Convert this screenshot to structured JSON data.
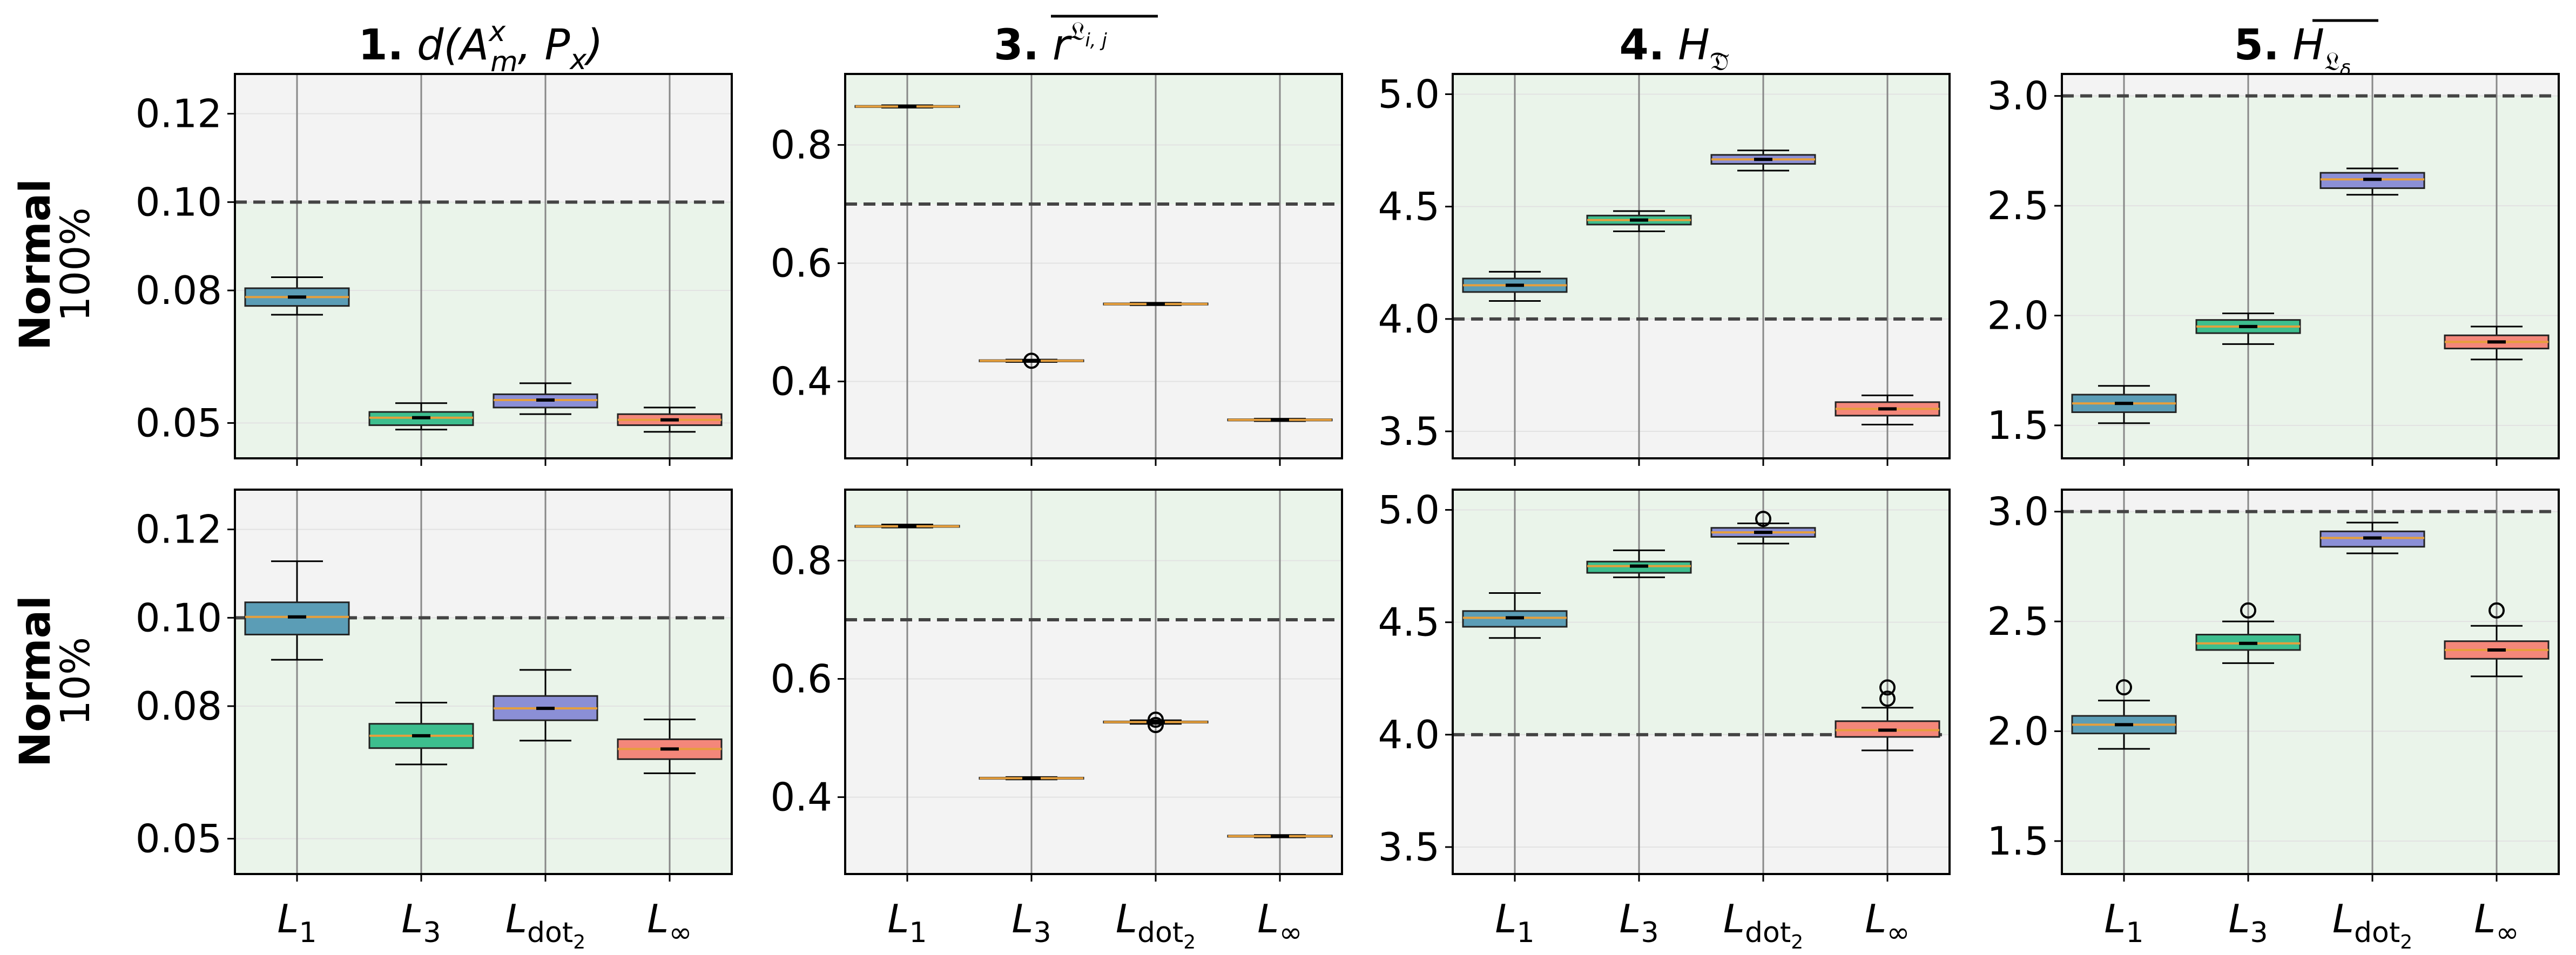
{
  "row_labels": [
    {
      "group": "Normal",
      "level": "100%"
    },
    {
      "group": "Normal",
      "level": "10%"
    }
  ],
  "titles": [
    {
      "num": "1.",
      "rest": "d(A",
      "sup": "x",
      "sub": "m",
      "tail": ", P",
      "sub2": "x",
      "end": ")"
    },
    {
      "num": "3.",
      "rest": "r",
      "sup": "𝔏",
      "supsub": "i, j",
      "overline": true
    },
    {
      "num": "4.",
      "rest": "H",
      "sub": "𝔇̃"
    },
    {
      "num": "5.",
      "rest": "H",
      "sub": "𝔏",
      "subsub": "δ",
      "overline": true
    }
  ],
  "x_labels": [
    {
      "base": "L",
      "sub": "1"
    },
    {
      "base": "L",
      "sub": "3"
    },
    {
      "base": "L",
      "sub": "dot",
      "subsub": "2"
    },
    {
      "base": "L",
      "sub": "∞"
    }
  ],
  "colors": {
    "boxes": [
      "#5B9DB6",
      "#3DBE8E",
      "#8B8FD6",
      "#F4877A"
    ],
    "median": "#E69F3C",
    "mean": "#000000",
    "good_region": "#EAF4EA",
    "bad_region": "#F3F3F3",
    "threshold": "#444444",
    "grid": "#E2E2E2",
    "vline": "#888888"
  },
  "chart_data": [
    {
      "type": "box",
      "row": 0,
      "col": 0,
      "ylim": [
        0.042,
        0.129
      ],
      "yticks": [
        0.05,
        0.08,
        0.1,
        0.12
      ],
      "ytick_labels": [
        "0.05",
        "0.08",
        "0.10",
        "0.12"
      ],
      "threshold": 0.1,
      "good": "below",
      "boxes": [
        {
          "whislo": 0.0745,
          "q1": 0.0765,
          "med": 0.0785,
          "q3": 0.0805,
          "whishi": 0.083,
          "mean": 0.0785,
          "fliers": []
        },
        {
          "whislo": 0.0485,
          "q1": 0.0495,
          "med": 0.0512,
          "q3": 0.0525,
          "whishi": 0.0545,
          "mean": 0.0512,
          "fliers": []
        },
        {
          "whislo": 0.052,
          "q1": 0.0535,
          "med": 0.0552,
          "q3": 0.0565,
          "whishi": 0.059,
          "mean": 0.0552,
          "fliers": []
        },
        {
          "whislo": 0.048,
          "q1": 0.0495,
          "med": 0.0507,
          "q3": 0.052,
          "whishi": 0.0535,
          "mean": 0.0507,
          "fliers": []
        }
      ]
    },
    {
      "type": "box",
      "row": 0,
      "col": 1,
      "ylim": [
        0.27,
        0.92
      ],
      "yticks": [
        0.4,
        0.6,
        0.8
      ],
      "ytick_labels": [
        "0.4",
        "0.6",
        "0.8"
      ],
      "threshold": 0.7,
      "good": "above",
      "boxes": [
        {
          "whislo": 0.863,
          "q1": 0.864,
          "med": 0.865,
          "q3": 0.866,
          "whishi": 0.867,
          "mean": 0.865,
          "fliers": []
        },
        {
          "whislo": 0.433,
          "q1": 0.434,
          "med": 0.435,
          "q3": 0.436,
          "whishi": 0.437,
          "mean": 0.435,
          "fliers": [
            0.435
          ]
        },
        {
          "whislo": 0.529,
          "q1": 0.53,
          "med": 0.531,
          "q3": 0.532,
          "whishi": 0.533,
          "mean": 0.531,
          "fliers": []
        },
        {
          "whislo": 0.333,
          "q1": 0.334,
          "med": 0.335,
          "q3": 0.336,
          "whishi": 0.337,
          "mean": 0.335,
          "fliers": []
        }
      ]
    },
    {
      "type": "box",
      "row": 0,
      "col": 2,
      "ylim": [
        3.38,
        5.09
      ],
      "yticks": [
        3.5,
        4.0,
        4.5,
        5.0
      ],
      "ytick_labels": [
        "3.5",
        "4.0",
        "4.5",
        "5.0"
      ],
      "threshold": 4.0,
      "good": "above",
      "boxes": [
        {
          "whislo": 4.08,
          "q1": 4.12,
          "med": 4.15,
          "q3": 4.18,
          "whishi": 4.21,
          "mean": 4.15,
          "fliers": []
        },
        {
          "whislo": 4.39,
          "q1": 4.42,
          "med": 4.44,
          "q3": 4.46,
          "whishi": 4.48,
          "mean": 4.44,
          "fliers": []
        },
        {
          "whislo": 4.66,
          "q1": 4.69,
          "med": 4.71,
          "q3": 4.73,
          "whishi": 4.75,
          "mean": 4.71,
          "fliers": []
        },
        {
          "whislo": 3.53,
          "q1": 3.57,
          "med": 3.6,
          "q3": 3.63,
          "whishi": 3.66,
          "mean": 3.6,
          "fliers": []
        }
      ]
    },
    {
      "type": "box",
      "row": 0,
      "col": 3,
      "ylim": [
        1.35,
        3.1
      ],
      "yticks": [
        1.5,
        2.0,
        2.5,
        3.0
      ],
      "ytick_labels": [
        "1.5",
        "2.0",
        "2.5",
        "3.0"
      ],
      "threshold": 3.0,
      "good": "below",
      "boxes": [
        {
          "whislo": 1.51,
          "q1": 1.56,
          "med": 1.6,
          "q3": 1.64,
          "whishi": 1.68,
          "mean": 1.6,
          "fliers": []
        },
        {
          "whislo": 1.87,
          "q1": 1.92,
          "med": 1.95,
          "q3": 1.98,
          "whishi": 2.01,
          "mean": 1.95,
          "fliers": []
        },
        {
          "whislo": 2.55,
          "q1": 2.58,
          "med": 2.62,
          "q3": 2.65,
          "whishi": 2.67,
          "mean": 2.62,
          "fliers": []
        },
        {
          "whislo": 1.8,
          "q1": 1.85,
          "med": 1.88,
          "q3": 1.91,
          "whishi": 1.95,
          "mean": 1.88,
          "fliers": []
        }
      ]
    },
    {
      "type": "box",
      "row": 1,
      "col": 0,
      "ylim": [
        0.042,
        0.129
      ],
      "yticks": [
        0.05,
        0.08,
        0.1,
        0.12
      ],
      "ytick_labels": [
        "0.05",
        "0.08",
        "0.10",
        "0.12"
      ],
      "threshold": 0.1,
      "good": "below",
      "boxes": [
        {
          "whislo": 0.0905,
          "q1": 0.0962,
          "med": 0.1002,
          "q3": 0.1035,
          "whishi": 0.1128,
          "mean": 0.1002,
          "fliers": []
        },
        {
          "whislo": 0.0668,
          "q1": 0.0705,
          "med": 0.0733,
          "q3": 0.076,
          "whishi": 0.0808,
          "mean": 0.0733,
          "fliers": []
        },
        {
          "whislo": 0.0722,
          "q1": 0.0768,
          "med": 0.0795,
          "q3": 0.0823,
          "whishi": 0.0882,
          "mean": 0.0795,
          "fliers": []
        },
        {
          "whislo": 0.0648,
          "q1": 0.068,
          "med": 0.0703,
          "q3": 0.0725,
          "whishi": 0.077,
          "mean": 0.0703,
          "fliers": []
        }
      ]
    },
    {
      "type": "box",
      "row": 1,
      "col": 1,
      "ylim": [
        0.27,
        0.92
      ],
      "yticks": [
        0.4,
        0.6,
        0.8
      ],
      "ytick_labels": [
        "0.4",
        "0.6",
        "0.8"
      ],
      "threshold": 0.7,
      "good": "above",
      "boxes": [
        {
          "whislo": 0.856,
          "q1": 0.857,
          "med": 0.858,
          "q3": 0.859,
          "whishi": 0.861,
          "mean": 0.858,
          "fliers": []
        },
        {
          "whislo": 0.43,
          "q1": 0.431,
          "med": 0.432,
          "q3": 0.433,
          "whishi": 0.434,
          "mean": 0.432,
          "fliers": []
        },
        {
          "whislo": 0.524,
          "q1": 0.526,
          "med": 0.527,
          "q3": 0.528,
          "whishi": 0.53,
          "mean": 0.527,
          "fliers": [
            0.531,
            0.522
          ]
        },
        {
          "whislo": 0.332,
          "q1": 0.333,
          "med": 0.334,
          "q3": 0.335,
          "whishi": 0.336,
          "mean": 0.334,
          "fliers": []
        }
      ]
    },
    {
      "type": "box",
      "row": 1,
      "col": 2,
      "ylim": [
        3.38,
        5.09
      ],
      "yticks": [
        3.5,
        4.0,
        4.5,
        5.0
      ],
      "ytick_labels": [
        "3.5",
        "4.0",
        "4.5",
        "5.0"
      ],
      "threshold": 4.0,
      "good": "above",
      "boxes": [
        {
          "whislo": 4.43,
          "q1": 4.48,
          "med": 4.52,
          "q3": 4.55,
          "whishi": 4.63,
          "mean": 4.52,
          "fliers": []
        },
        {
          "whislo": 4.7,
          "q1": 4.72,
          "med": 4.75,
          "q3": 4.77,
          "whishi": 4.82,
          "mean": 4.75,
          "fliers": []
        },
        {
          "whislo": 4.85,
          "q1": 4.88,
          "med": 4.9,
          "q3": 4.92,
          "whishi": 4.94,
          "mean": 4.9,
          "fliers": [
            4.96
          ]
        },
        {
          "whislo": 3.93,
          "q1": 3.99,
          "med": 4.02,
          "q3": 4.06,
          "whishi": 4.12,
          "mean": 4.02,
          "fliers": [
            4.16,
            4.21
          ]
        }
      ]
    },
    {
      "type": "box",
      "row": 1,
      "col": 3,
      "ylim": [
        1.35,
        3.1
      ],
      "yticks": [
        1.5,
        2.0,
        2.5,
        3.0
      ],
      "ytick_labels": [
        "1.5",
        "2.0",
        "2.5",
        "3.0"
      ],
      "threshold": 3.0,
      "good": "below",
      "boxes": [
        {
          "whislo": 1.92,
          "q1": 1.99,
          "med": 2.03,
          "q3": 2.07,
          "whishi": 2.14,
          "mean": 2.03,
          "fliers": [
            2.2
          ]
        },
        {
          "whislo": 2.31,
          "q1": 2.37,
          "med": 2.4,
          "q3": 2.44,
          "whishi": 2.5,
          "mean": 2.4,
          "fliers": [
            2.55
          ]
        },
        {
          "whislo": 2.81,
          "q1": 2.84,
          "med": 2.88,
          "q3": 2.91,
          "whishi": 2.95,
          "mean": 2.88,
          "fliers": []
        },
        {
          "whislo": 2.25,
          "q1": 2.33,
          "med": 2.37,
          "q3": 2.41,
          "whishi": 2.48,
          "mean": 2.37,
          "fliers": [
            2.55
          ]
        }
      ]
    }
  ]
}
